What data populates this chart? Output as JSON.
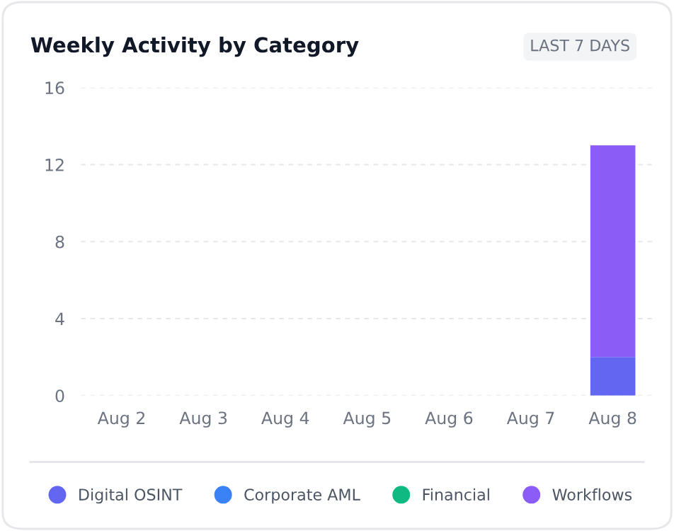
{
  "chart_data": {
    "type": "bar",
    "title": "Weekly Activity by Category",
    "annotations": [
      "LAST 7 DAYS"
    ],
    "categories": [
      "Aug 2",
      "Aug 3",
      "Aug 4",
      "Aug 5",
      "Aug 6",
      "Aug 7",
      "Aug 8"
    ],
    "stacked": true,
    "series": [
      {
        "name": "Digital OSINT",
        "color": "#6366f1",
        "values": [
          0,
          0,
          0,
          0,
          0,
          0,
          2
        ]
      },
      {
        "name": "Corporate AML",
        "color": "#3b82f6",
        "values": [
          0,
          0,
          0,
          0,
          0,
          0,
          0
        ]
      },
      {
        "name": "Financial",
        "color": "#10b981",
        "values": [
          0,
          0,
          0,
          0,
          0,
          0,
          0
        ]
      },
      {
        "name": "Workflows",
        "color": "#8b5cf6",
        "values": [
          0,
          0,
          0,
          0,
          0,
          0,
          11
        ]
      }
    ],
    "ylim": [
      0,
      16
    ],
    "yticks": [
      0,
      4,
      8,
      12,
      16
    ],
    "grid": "y",
    "legend": "bottom"
  }
}
